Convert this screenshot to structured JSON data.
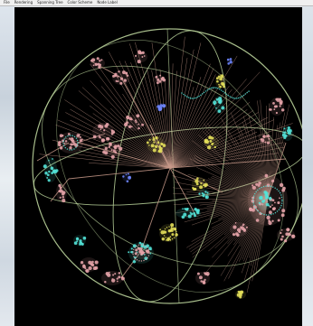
{
  "window": {
    "menu": [
      {
        "label": "File"
      },
      {
        "label": "Rendering"
      },
      {
        "label": "Spanning Tree"
      },
      {
        "label": "Color Scheme"
      },
      {
        "label": "Node Label"
      }
    ]
  },
  "visualization": {
    "kind": "3d hyperbolic graph",
    "colors": {
      "background": "#000000",
      "sphere": "#b9d29a",
      "edge": "#c89a8a",
      "node_cyan": "#52e3d8",
      "node_pink": "#e5a3a8",
      "node_yellow": "#e4e05a",
      "node_blue": "#6f86ff"
    }
  }
}
